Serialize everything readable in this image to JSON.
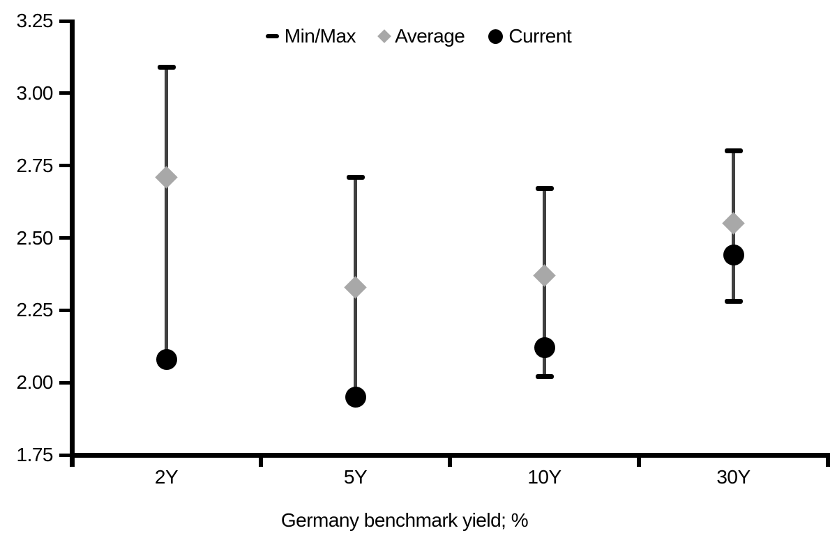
{
  "chart_data": {
    "type": "scatter",
    "subtype": "min-max-range-with-markers",
    "title": "",
    "xlabel": "Germany benchmark yield; %",
    "ylabel": "",
    "categories": [
      "2Y",
      "5Y",
      "10Y",
      "30Y"
    ],
    "series": [
      {
        "name": "Min/Max",
        "marker": "dash-cap",
        "color": "#000000",
        "min": [
          2.08,
          1.95,
          2.02,
          2.28
        ],
        "max": [
          3.09,
          2.71,
          2.67,
          2.8
        ]
      },
      {
        "name": "Average",
        "marker": "diamond",
        "color": "#a8a8a8",
        "values": [
          2.71,
          2.33,
          2.37,
          2.55
        ]
      },
      {
        "name": "Current",
        "marker": "circle",
        "color": "#000000",
        "values": [
          2.08,
          1.95,
          2.12,
          2.44
        ]
      }
    ],
    "ylim": [
      1.75,
      3.25
    ],
    "yticks": [
      "3.25",
      "3.00",
      "2.75",
      "2.50",
      "2.25",
      "2.00",
      "1.75"
    ],
    "grid": false,
    "legend_position": "top-center",
    "legend": [
      {
        "label": "Min/Max",
        "marker": "dash-icon",
        "color": "#000000"
      },
      {
        "label": "Average",
        "marker": "diamond-icon",
        "color": "#a8a8a8"
      },
      {
        "label": "Current",
        "marker": "circle-icon",
        "color": "#000000"
      }
    ],
    "colors": {
      "error_bar_line": "#404040",
      "axis": "#000000",
      "text": "#000000",
      "background": "#ffffff"
    }
  }
}
